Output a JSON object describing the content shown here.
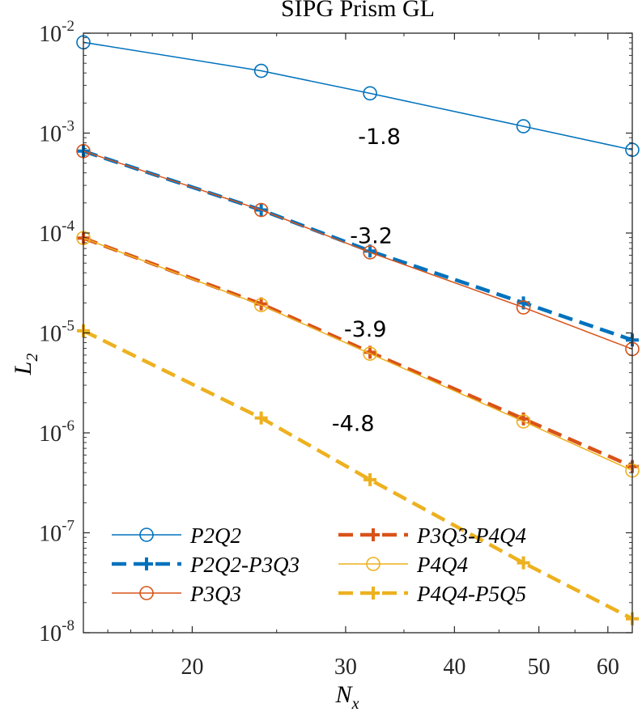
{
  "chart_data": {
    "type": "line",
    "title": "SIPG Prism GL",
    "xlabel": {
      "main": "N",
      "sub": "x"
    },
    "ylabel": {
      "main": "L",
      "sub": "2"
    },
    "xscale": "log",
    "yscale": "log",
    "xlim": [
      15,
      64
    ],
    "ylim": [
      1e-08,
      0.01
    ],
    "x": [
      15,
      24,
      32,
      48,
      64
    ],
    "x_ticks": [
      20,
      30,
      40,
      50,
      60
    ],
    "x_tick_labels": [
      "20",
      "30",
      "40",
      "50",
      "60"
    ],
    "y_ticks": [
      1e-08,
      1e-07,
      1e-06,
      1e-05,
      0.0001,
      0.001,
      0.01
    ],
    "y_tick_labels": [
      {
        "base": "10",
        "exp": "-8"
      },
      {
        "base": "10",
        "exp": "-7"
      },
      {
        "base": "10",
        "exp": "-6"
      },
      {
        "base": "10",
        "exp": "-5"
      },
      {
        "base": "10",
        "exp": "-4"
      },
      {
        "base": "10",
        "exp": "-3"
      },
      {
        "base": "10",
        "exp": "-2"
      }
    ],
    "series": [
      {
        "name": "P2Q2",
        "color": "#0072BD",
        "line": "solid",
        "marker": "circle",
        "values": [
          0.0081,
          0.0042,
          0.0025,
          0.00117,
          0.00068
        ]
      },
      {
        "name": "P2Q2-P3Q3",
        "color": "#0072BD",
        "line": "dashed",
        "marker": "plus",
        "values": [
          0.00066,
          0.00017,
          6.6e-05,
          2e-05,
          8.5e-06
        ]
      },
      {
        "name": "P3Q3",
        "color": "#D95319",
        "line": "solid",
        "marker": "circle",
        "values": [
          0.00066,
          0.00017,
          6.4e-05,
          1.8e-05,
          6.9e-06
        ]
      },
      {
        "name": "P3Q3-P4Q4",
        "color": "#D95319",
        "line": "dashed",
        "marker": "plus",
        "values": [
          8.9e-05,
          1.95e-05,
          6.4e-06,
          1.38e-06,
          4.6e-07
        ]
      },
      {
        "name": "P4Q4",
        "color": "#EDB120",
        "line": "solid",
        "marker": "circle",
        "values": [
          8.9e-05,
          1.9e-05,
          6.2e-06,
          1.3e-06,
          4.2e-07
        ]
      },
      {
        "name": "P4Q4-P5Q5",
        "color": "#EDB120",
        "line": "dashed",
        "marker": "plus",
        "values": [
          1.05e-05,
          1.41e-06,
          3.4e-07,
          5e-08,
          1.38e-08
        ]
      }
    ],
    "annotations": [
      {
        "text": "-1.8",
        "x": 32.8,
        "y": 0.00078
      },
      {
        "text": "-3.2",
        "x": 32.1,
        "y": 7.9e-05
      },
      {
        "text": "-3.9",
        "x": 31.6,
        "y": 9.2e-06
      },
      {
        "text": "-4.8",
        "x": 30.6,
        "y": 1.05e-06
      }
    ],
    "legend": {
      "placement": "bottom-left",
      "columns": 2,
      "items": [
        {
          "label": "P2Q2",
          "series": 0
        },
        {
          "label": "P3Q3-P4Q4",
          "series": 3
        },
        {
          "label": "P2Q2-P3Q3",
          "series": 1
        },
        {
          "label": "P4Q4",
          "series": 4
        },
        {
          "label": "P3Q3",
          "series": 2
        },
        {
          "label": "P4Q4-P5Q5",
          "series": 5
        }
      ]
    },
    "grid": false
  }
}
